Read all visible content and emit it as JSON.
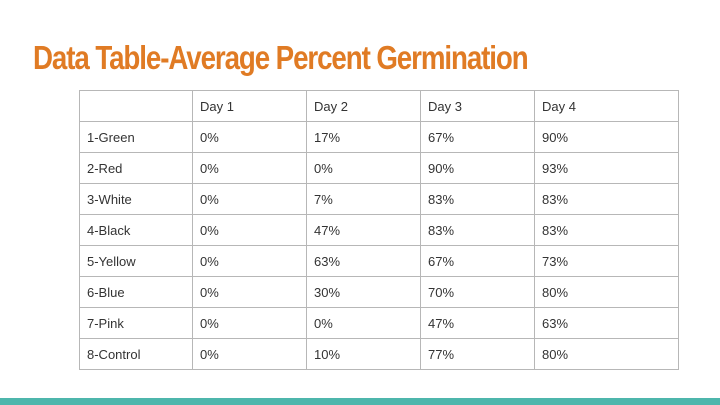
{
  "title": "Data Table-Average Percent Germination",
  "table": {
    "columns": [
      "",
      "Day 1",
      "Day 2",
      "Day 3",
      "Day 4"
    ],
    "rows": [
      [
        "1-Green",
        "0%",
        "17%",
        "67%",
        "90%"
      ],
      [
        "2-Red",
        "0%",
        "0%",
        "90%",
        "93%"
      ],
      [
        "3-White",
        "0%",
        "7%",
        "83%",
        "83%"
      ],
      [
        "4-Black",
        "0%",
        "47%",
        "83%",
        "83%"
      ],
      [
        "5-Yellow",
        "0%",
        "63%",
        "67%",
        "73%"
      ],
      [
        "6-Blue",
        "0%",
        "30%",
        "70%",
        "80%"
      ],
      [
        "7-Pink",
        "0%",
        "0%",
        "47%",
        "63%"
      ],
      [
        "8-Control",
        "0%",
        "10%",
        "77%",
        "80%"
      ]
    ]
  },
  "colors": {
    "title": "#e07b24",
    "accent_bar": "#4db6ac",
    "border": "#b7b7b7",
    "text": "#333333"
  }
}
